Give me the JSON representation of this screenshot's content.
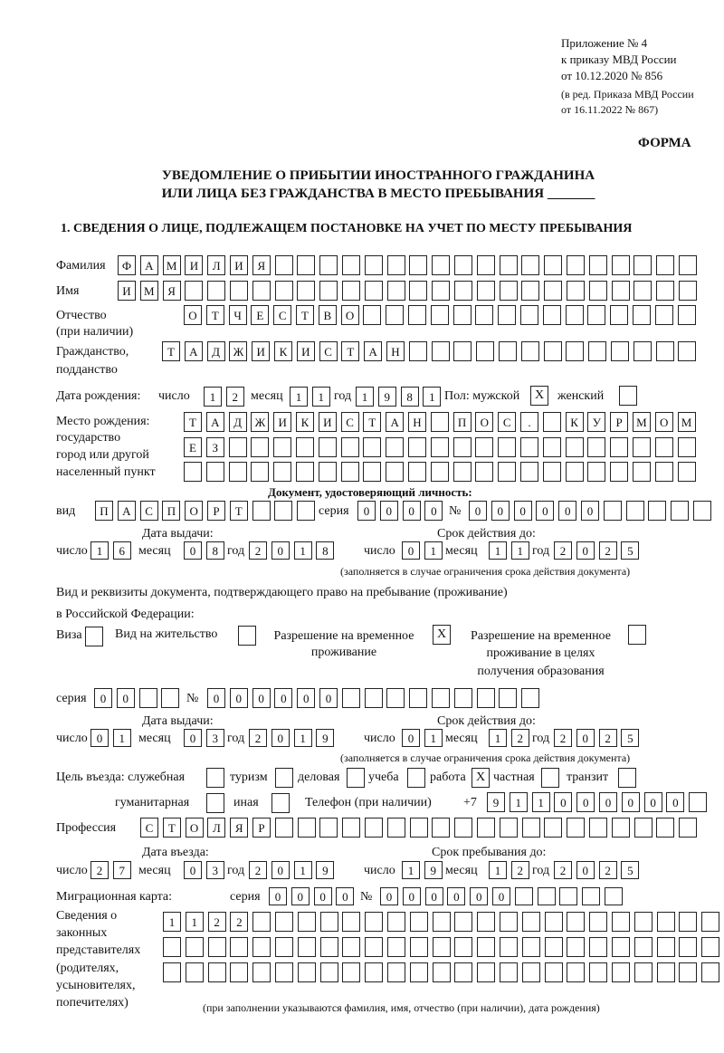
{
  "header": {
    "line1": "Приложение № 4",
    "line2": "к приказу МВД России",
    "line3": "от 10.12.2020 № 856",
    "line4": "(в ред. Приказа МВД России",
    "line5": "от 16.11.2022 № 867)",
    "forma": "ФОРМА"
  },
  "title": {
    "line1": "УВЕДОМЛЕНИЕ О ПРИБЫТИИ ИНОСТРАННОГО ГРАЖДАНИНА",
    "line2": "ИЛИ ЛИЦА БЕЗ ГРАЖДАНСТВА В МЕСТО ПРЕБЫВАНИЯ _______"
  },
  "section1": "1. СВЕДЕНИЯ О ЛИЦЕ, ПОДЛЕЖАЩЕМ ПОСТАНОВКЕ НА УЧЕТ ПО МЕСТУ ПРЕБЫВАНИЯ",
  "labels": {
    "surname": "Фамилия",
    "name": "Имя",
    "patronymic": "Отчество",
    "patronymic2": "(при наличии)",
    "citizenship": "Гражданство,",
    "citizenship2": "подданство",
    "birth_date": "Дата рождения:",
    "day": "число",
    "month": "месяц",
    "year": "год",
    "sex": "Пол: мужской",
    "female": "женский",
    "birth_place1": "Место рождения:",
    "birth_place2": "государство",
    "birth_place3": "город или другой",
    "birth_place4": "населенный пункт",
    "id_doc": "Документ, удостоверяющий личность:",
    "kind": "вид",
    "series": "серия",
    "number": "№",
    "issue_date": "Дата выдачи:",
    "valid_until": "Срок действия до:",
    "validity_note": "(заполняется в случае ограничения срока действия документа)",
    "right_doc1": "Вид и реквизиты документа, подтверждающего право на пребывание (проживание)",
    "right_doc2": "в Российской Федерации:",
    "visa": "Виза",
    "residence": "Вид на жительство",
    "temp_res1": "Разрешение на временное",
    "temp_res2": "проживание",
    "temp_edu1": "Разрешение на временное",
    "temp_edu2": "проживание в целях",
    "temp_edu3": "получения образования",
    "purpose": "Цель въезда: служебная",
    "tourism": "туризм",
    "business": "деловая",
    "study": "учеба",
    "work": "работа",
    "private": "частная",
    "transit": "транзит",
    "humanitarian": "гуманитарная",
    "other": "иная",
    "phone": "Телефон (при наличии)",
    "phone_prefix": "+7",
    "profession": "Профессия",
    "entry_date": "Дата въезда:",
    "stay_until": "Срок пребывания до:",
    "migration_card": "Миграционная карта:",
    "reps1": "Сведения о",
    "reps2": "законных",
    "reps3": "представителях",
    "reps4": "(родителях,",
    "reps5": "усыновителях,",
    "reps6": "попечителях)",
    "reps_note": "(при заполнении указываются фамилия, имя, отчество (при наличии), дата рождения)"
  },
  "values": {
    "surname": "ФАМИЛИЯ",
    "name": "ИМЯ",
    "patronymic": "ОТЧЕСТВО",
    "citizenship": "ТАДЖИКИСТАН",
    "birth_day": "12",
    "birth_month": "11",
    "birth_year": "1981",
    "sex_male": "X",
    "sex_female": "",
    "birth_place_1": "ТАДЖИКИСТАН ПОС. КУРМОМБ",
    "birth_place_2": "ЕЗ",
    "birth_place_3": "",
    "id_kind": "ПАСПОРТ",
    "id_series": "0000",
    "id_number": "000000",
    "id_issue_day": "16",
    "id_issue_month": "08",
    "id_issue_year": "2018",
    "id_valid_day": "01",
    "id_valid_month": "11",
    "id_valid_year": "2025",
    "visa": "",
    "residence": "",
    "temp_res": "X",
    "temp_edu": "",
    "rd_series": "00",
    "rd_number": "000000",
    "rd_issue_day": "01",
    "rd_issue_month": "03",
    "rd_issue_year": "2019",
    "rd_valid_day": "01",
    "rd_valid_month": "12",
    "rd_valid_year": "2025",
    "p_service": "",
    "p_tourism": "",
    "p_business": "",
    "p_study": "",
    "p_work": "X",
    "p_private": "",
    "p_transit": "",
    "p_humanitarian": "",
    "p_other": "",
    "phone": "911000000",
    "profession": "СТОЛЯР",
    "entry_day": "27",
    "entry_month": "03",
    "entry_year": "2019",
    "stay_day": "19",
    "stay_month": "12",
    "stay_year": "2025",
    "mc_series": "0000",
    "mc_number": "000000",
    "reps_1": "1122",
    "reps_2": "",
    "reps_3": ""
  }
}
